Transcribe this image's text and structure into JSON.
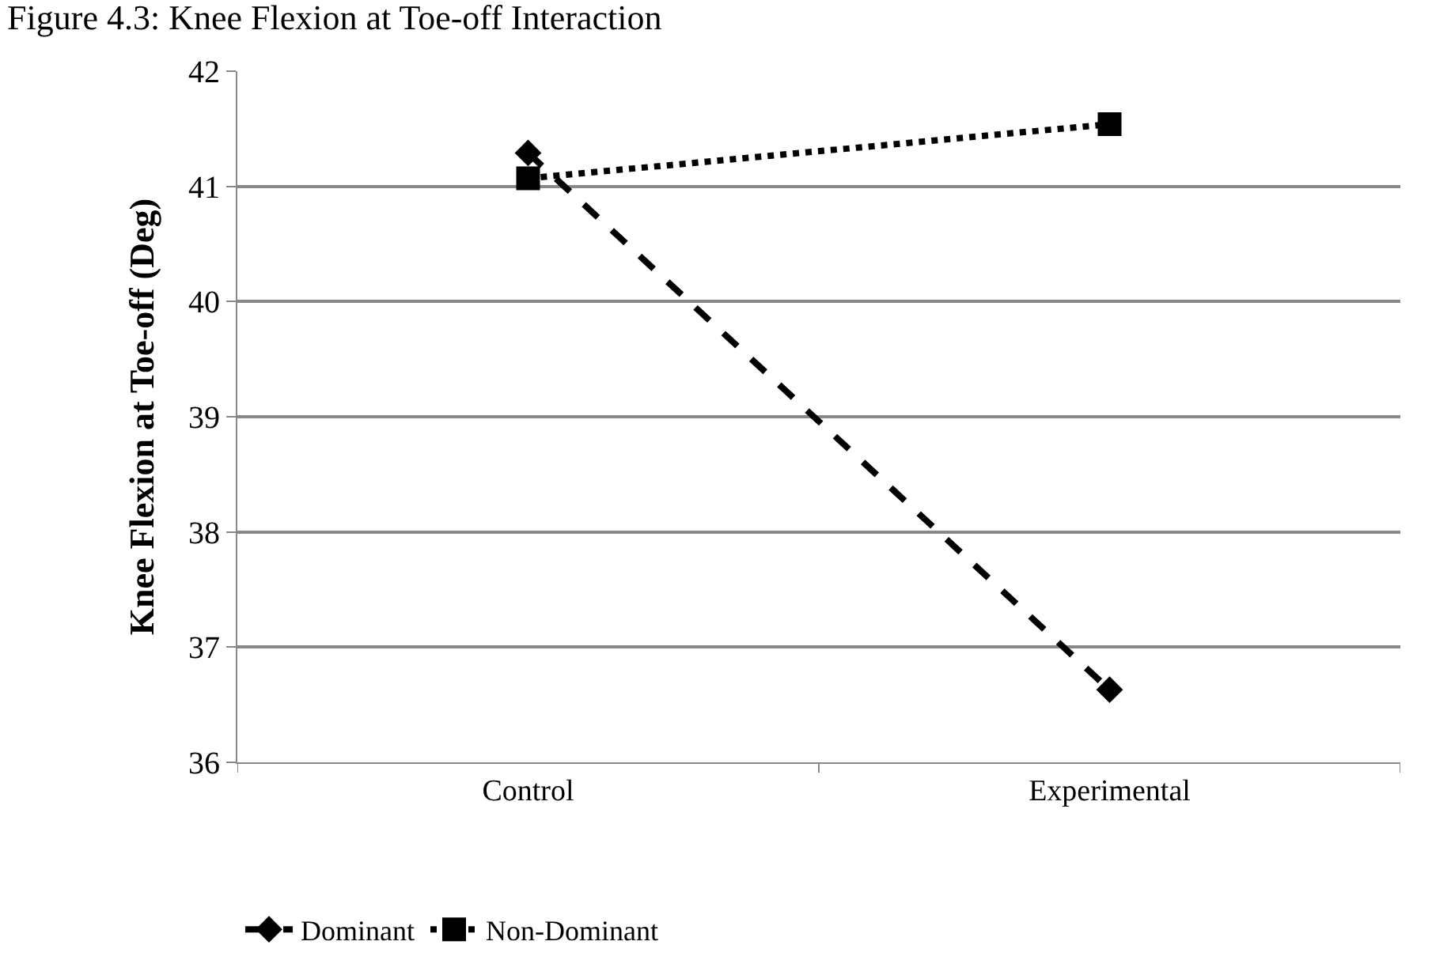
{
  "chart_data": {
    "type": "line",
    "title": "Figure 4.3: Knee Flexion at Toe-off Interaction",
    "ylabel": "Knee Flexion at Toe-off (Deg)",
    "categories": [
      "Control",
      "Experimental"
    ],
    "series": [
      {
        "name": "Dominant",
        "color": "#000000",
        "values": [
          41.29,
          36.63
        ],
        "marker": "diamond",
        "line_style": "dashed"
      },
      {
        "name": "Non-Dominant",
        "color": "#000000",
        "values": [
          41.07,
          41.54
        ],
        "marker": "square",
        "line_style": "dotted"
      }
    ],
    "ylim": [
      36,
      42
    ],
    "yticks": [
      36,
      37,
      38,
      39,
      40,
      41,
      42
    ],
    "grid": "y",
    "legend": "bottom left"
  }
}
